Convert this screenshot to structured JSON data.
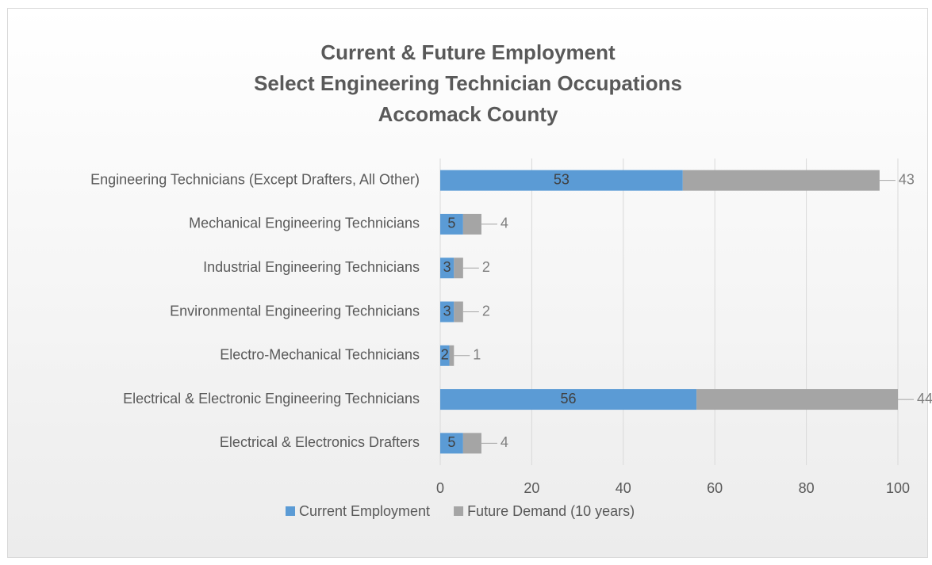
{
  "chart_data": {
    "type": "stacked_bar_horizontal",
    "title": [
      "Current & Future Employment",
      "Select Engineering Technician Occupations",
      "Accomack County"
    ],
    "categories": [
      "Engineering Technicians (Except Drafters, All Other)",
      "Mechanical Engineering Technicians",
      "Industrial Engineering Technicians",
      "Environmental Engineering Technicians",
      "Electro-Mechanical Technicians",
      "Electrical & Electronic Engineering Technicians",
      "Electrical & Electronics Drafters"
    ],
    "series": [
      {
        "name": "Current Employment",
        "color": "#5b9bd5",
        "values": [
          53,
          5,
          3,
          3,
          2,
          56,
          5
        ]
      },
      {
        "name": "Future Demand (10 years)",
        "color": "#a5a5a5",
        "values": [
          43,
          4,
          2,
          2,
          1,
          44,
          4
        ]
      }
    ],
    "xlim": [
      0,
      100
    ],
    "xticks": [
      0,
      20,
      40,
      60,
      80,
      100
    ],
    "grid": true,
    "legend": "bottom"
  }
}
